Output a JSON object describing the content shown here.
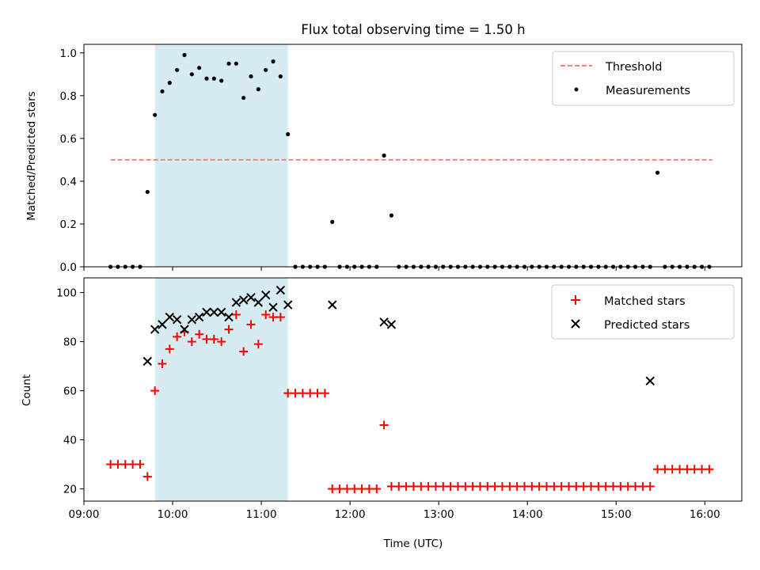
{
  "chart_data": [
    {
      "type": "scatter",
      "title": "Flux total observing time = 1.50 h",
      "ylabel": "Matched/Predicted stars",
      "xlabel": "",
      "xlim": [
        "09:00",
        "16:25"
      ],
      "ylim": [
        0,
        1.04
      ],
      "x_ticks": [
        "09:00",
        "10:00",
        "11:00",
        "12:00",
        "13:00",
        "14:00",
        "15:00",
        "16:00"
      ],
      "y_ticks": [
        "0.0",
        "0.2",
        "0.4",
        "0.6",
        "0.8",
        "1.0"
      ],
      "y_tick_values": [
        0,
        0.2,
        0.4,
        0.6,
        0.8,
        1.0
      ],
      "highlight_span": [
        "09:48",
        "11:18"
      ],
      "grid": false,
      "legend_position": "top-right",
      "threshold": {
        "name": "Threshold",
        "value": 0.5,
        "x": [
          "09:18",
          "16:05"
        ]
      },
      "series": [
        {
          "name": "Measurements",
          "x": [
            "09:18",
            "09:23",
            "09:28",
            "09:33",
            "09:38",
            "09:43",
            "09:48",
            "09:53",
            "09:58",
            "10:03",
            "10:08",
            "10:13",
            "10:18",
            "10:23",
            "10:28",
            "10:33",
            "10:38",
            "10:43",
            "10:48",
            "10:53",
            "10:58",
            "11:03",
            "11:08",
            "11:13",
            "11:18",
            "11:23",
            "11:28",
            "11:33",
            "11:38",
            "11:43",
            "11:48",
            "11:53",
            "11:58",
            "12:03",
            "12:08",
            "12:13",
            "12:18",
            "12:23",
            "12:28",
            "12:33",
            "12:38",
            "12:43",
            "12:48",
            "12:53",
            "12:58",
            "13:03",
            "13:08",
            "13:13",
            "13:18",
            "13:23",
            "13:28",
            "13:33",
            "13:38",
            "13:43",
            "13:48",
            "13:53",
            "13:58",
            "14:03",
            "14:08",
            "14:13",
            "14:18",
            "14:23",
            "14:28",
            "14:33",
            "14:38",
            "14:43",
            "14:48",
            "14:53",
            "14:58",
            "15:03",
            "15:08",
            "15:13",
            "15:18",
            "15:23",
            "15:28",
            "15:33",
            "15:38",
            "15:43",
            "15:48",
            "15:53",
            "15:58",
            "16:03"
          ],
          "y": [
            0,
            0,
            0,
            0,
            0,
            0.35,
            0.71,
            0.82,
            0.86,
            0.92,
            0.99,
            0.9,
            0.93,
            0.88,
            0.88,
            0.87,
            0.95,
            0.95,
            0.79,
            0.89,
            0.83,
            0.92,
            0.96,
            0.89,
            0.62,
            0,
            0,
            0,
            0,
            0,
            0.21,
            0,
            0,
            0,
            0,
            0,
            0,
            0.52,
            0.24,
            0,
            0,
            0,
            0,
            0,
            0,
            0,
            0,
            0,
            0,
            0,
            0,
            0,
            0,
            0,
            0,
            0,
            0,
            0,
            0,
            0,
            0,
            0,
            0,
            0,
            0,
            0,
            0,
            0,
            0,
            0,
            0,
            0,
            0,
            0,
            0.44,
            0,
            0,
            0,
            0,
            0,
            0,
            0
          ]
        }
      ]
    },
    {
      "type": "scatter",
      "title": "",
      "ylabel": "Count",
      "xlabel": "Time (UTC)",
      "xlim": [
        "09:00",
        "16:25"
      ],
      "ylim": [
        15,
        106
      ],
      "x_ticks": [
        "09:00",
        "10:00",
        "11:00",
        "12:00",
        "13:00",
        "14:00",
        "15:00",
        "16:00"
      ],
      "y_ticks": [
        "20",
        "40",
        "60",
        "80",
        "100"
      ],
      "y_tick_values": [
        20,
        40,
        60,
        80,
        100
      ],
      "highlight_span": [
        "09:48",
        "11:18"
      ],
      "grid": false,
      "legend_position": "top-right",
      "series": [
        {
          "name": "Matched stars",
          "marker": "plus",
          "color": "#ff0000",
          "x": [
            "09:18",
            "09:23",
            "09:28",
            "09:33",
            "09:38",
            "09:43",
            "09:48",
            "09:53",
            "09:58",
            "10:03",
            "10:08",
            "10:13",
            "10:18",
            "10:23",
            "10:28",
            "10:33",
            "10:38",
            "10:43",
            "10:48",
            "10:53",
            "10:58",
            "11:03",
            "11:08",
            "11:13",
            "11:18",
            "11:23",
            "11:28",
            "11:33",
            "11:38",
            "11:43",
            "11:48",
            "11:53",
            "11:58",
            "12:03",
            "12:08",
            "12:13",
            "12:18",
            "12:23",
            "12:28",
            "12:33",
            "12:38",
            "12:43",
            "12:48",
            "12:53",
            "12:58",
            "13:03",
            "13:08",
            "13:13",
            "13:18",
            "13:23",
            "13:28",
            "13:33",
            "13:38",
            "13:43",
            "13:48",
            "13:53",
            "13:58",
            "14:03",
            "14:08",
            "14:13",
            "14:18",
            "14:23",
            "14:28",
            "14:33",
            "14:38",
            "14:43",
            "14:48",
            "14:53",
            "14:58",
            "15:03",
            "15:08",
            "15:13",
            "15:18",
            "15:23",
            "15:28",
            "15:33",
            "15:38",
            "15:43",
            "15:48",
            "15:53",
            "15:58",
            "16:03"
          ],
          "y": [
            30,
            30,
            30,
            30,
            30,
            25,
            60,
            71,
            77,
            82,
            84,
            80,
            83,
            81,
            81,
            80,
            85,
            91,
            76,
            87,
            79,
            91,
            90,
            90,
            59,
            59,
            59,
            59,
            59,
            59,
            20,
            20,
            20,
            20,
            20,
            20,
            20,
            46,
            21,
            21,
            21,
            21,
            21,
            21,
            21,
            21,
            21,
            21,
            21,
            21,
            21,
            21,
            21,
            21,
            21,
            21,
            21,
            21,
            21,
            21,
            21,
            21,
            21,
            21,
            21,
            21,
            21,
            21,
            21,
            21,
            21,
            21,
            21,
            21,
            28,
            28,
            28,
            28,
            28,
            28,
            28,
            28
          ]
        },
        {
          "name": "Predicted stars",
          "marker": "x",
          "color": "#000000",
          "x": [
            "09:43",
            "09:48",
            "09:53",
            "09:58",
            "10:03",
            "10:08",
            "10:13",
            "10:18",
            "10:23",
            "10:28",
            "10:33",
            "10:38",
            "10:43",
            "10:48",
            "10:53",
            "10:58",
            "11:03",
            "11:08",
            "11:13",
            "11:18",
            "11:48",
            "12:23",
            "12:28",
            "15:23"
          ],
          "y": [
            72,
            85,
            87,
            90,
            89,
            85,
            89,
            90,
            92,
            92,
            92,
            90,
            96,
            97,
            98,
            96,
            99,
            94,
            101,
            95,
            95,
            88,
            87,
            64
          ]
        }
      ]
    }
  ]
}
